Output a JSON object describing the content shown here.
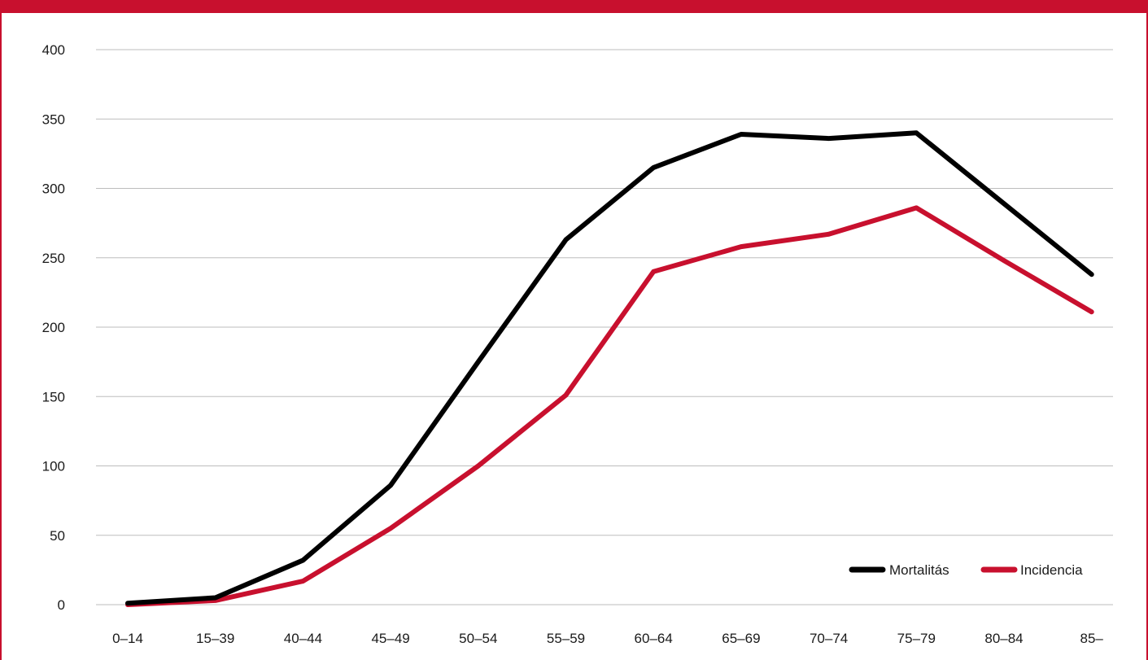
{
  "colors": {
    "frame": "#c8102e",
    "grid": "#bdbdbd"
  },
  "chart_data": {
    "type": "line",
    "title": "",
    "xlabel": "",
    "ylabel": "",
    "categories": [
      "0–14",
      "15–39",
      "40–44",
      "45–49",
      "50–54",
      "55–59",
      "60–64",
      "65–69",
      "70–74",
      "75–79",
      "80–84",
      "85–"
    ],
    "ylim": [
      0,
      400
    ],
    "yticks": [
      0,
      50,
      100,
      150,
      200,
      250,
      300,
      350,
      400
    ],
    "grid": true,
    "legend_position": "bottom-right",
    "series": [
      {
        "name": "Mortalitás",
        "color": "#000000",
        "values": [
          1,
          5,
          32,
          86,
          175,
          263,
          315,
          339,
          336,
          340,
          289,
          238
        ]
      },
      {
        "name": "Incidencia",
        "color": "#c8102e",
        "values": [
          0,
          3,
          17,
          55,
          100,
          151,
          240,
          258,
          267,
          286,
          248,
          211
        ]
      }
    ]
  }
}
